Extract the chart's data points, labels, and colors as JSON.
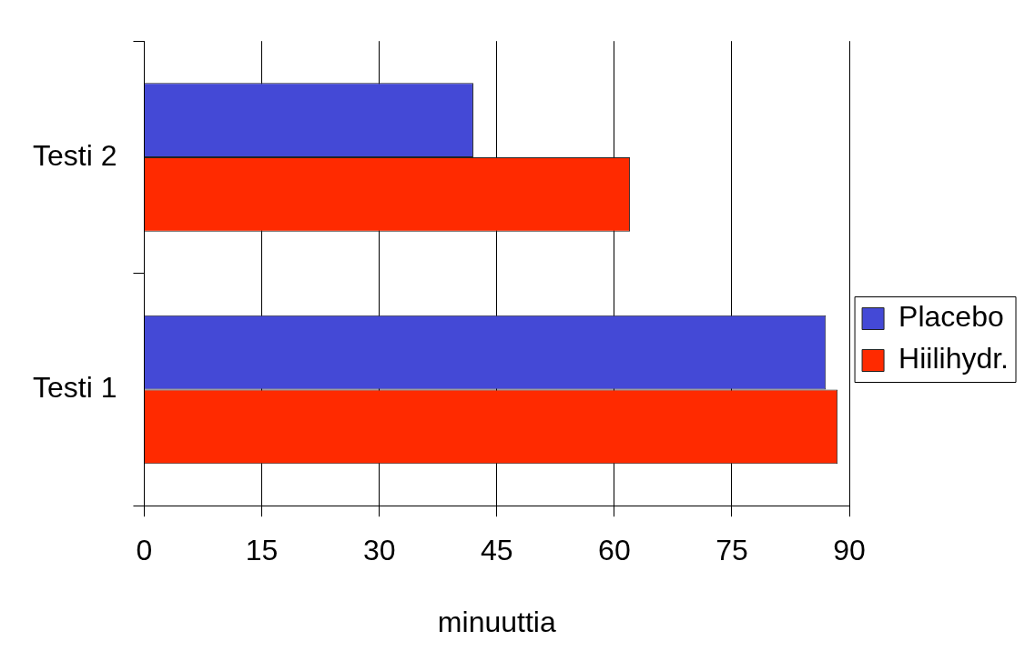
{
  "chart_data": {
    "type": "bar",
    "orientation": "horizontal",
    "xlabel": "minuuttia",
    "categories": [
      "Testi 2",
      "Testi 1"
    ],
    "series": [
      {
        "name": "Placebo",
        "color": "#4449d6",
        "values": [
          42,
          87
        ]
      },
      {
        "name": "Hiilihydr.",
        "color": "#ff2a00",
        "values": [
          62,
          88.5
        ]
      }
    ],
    "xlim": [
      0,
      90
    ],
    "xticks": [
      0,
      15,
      30,
      45,
      60,
      75,
      90
    ],
    "grid": "x",
    "legend": "right"
  }
}
